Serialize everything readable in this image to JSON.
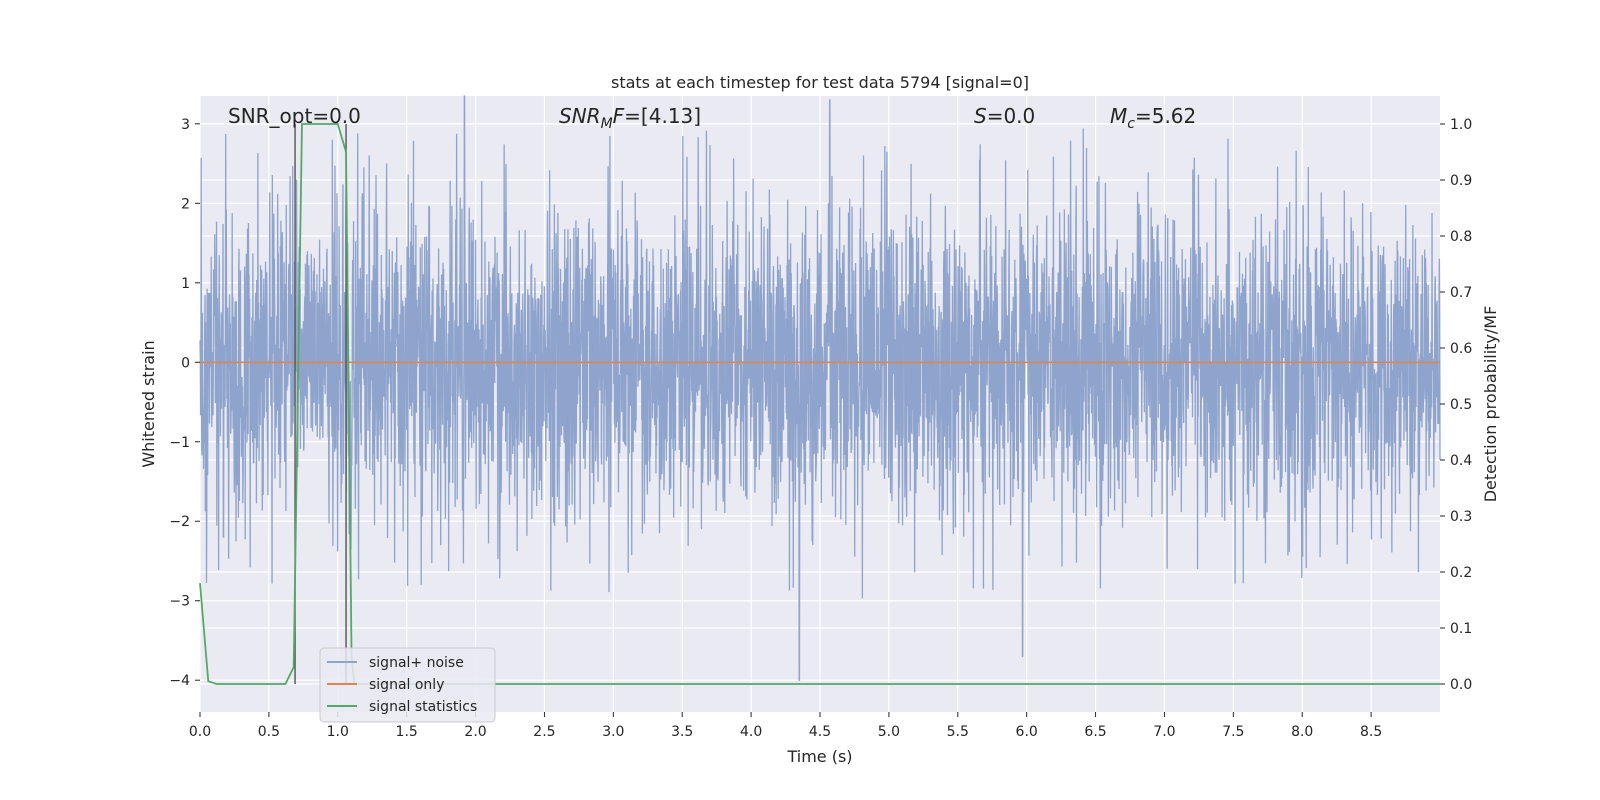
{
  "chart_data": {
    "type": "line",
    "title": "stats at each timestep for test data 5794 [signal=0]",
    "xlabel": "Time (s)",
    "ylabel": "Whitened strain",
    "y2label": "Detection probability/MF",
    "xlim": [
      0.0,
      9.0
    ],
    "ylim": [
      -4.4,
      3.35
    ],
    "y2lim": [
      -0.05,
      1.05
    ],
    "xticks": [
      "0.0",
      "0.5",
      "1.0",
      "1.5",
      "2.0",
      "2.5",
      "3.0",
      "3.5",
      "4.0",
      "4.5",
      "5.0",
      "5.5",
      "6.0",
      "6.5",
      "7.0",
      "7.5",
      "8.0",
      "8.5"
    ],
    "yticks": [
      "3",
      "2",
      "1",
      "0",
      "−1",
      "−2",
      "−3",
      "−4"
    ],
    "y2ticks": [
      "1.0",
      "0.9",
      "0.8",
      "0.7",
      "0.6",
      "0.5",
      "0.4",
      "0.3",
      "0.2",
      "0.1",
      "0.0"
    ],
    "grid": true,
    "legend_position": "lower-left",
    "annotations": {
      "snr_opt": "SNR_opt=0.0",
      "snr_mf_base": "SNR",
      "snr_mf_sub": "M",
      "snr_mf_rest": "F=[4.13]",
      "s_var": "S",
      "s_value": "=0.0",
      "mc_var": "M",
      "mc_sub": "c",
      "mc_value": "=5.62"
    },
    "series": [
      {
        "name": "signal+ noise",
        "color": "#8fa4cc",
        "axis": "left",
        "style": "dense noise",
        "typical_range": [
          -1.8,
          1.8
        ],
        "extremes": [
          [
            0.17,
            -2.2
          ],
          [
            1.92,
            3.35
          ],
          [
            4.35,
            -4.0
          ],
          [
            4.57,
            3.3
          ],
          [
            5.97,
            -3.7
          ]
        ]
      },
      {
        "name": "signal only",
        "color": "#dd8452",
        "axis": "left",
        "x": [
          0.0,
          9.0
        ],
        "y": [
          0.0,
          0.0
        ]
      },
      {
        "name": "signal statistics",
        "color": "#55a868",
        "axis": "right",
        "x": [
          0.0,
          0.06,
          0.12,
          0.62,
          0.68,
          0.74,
          1.0,
          1.06,
          1.1,
          1.12,
          9.0
        ],
        "y": [
          0.18,
          0.005,
          0.0,
          0.0,
          0.03,
          1.0,
          1.0,
          0.95,
          0.05,
          0.0,
          0.0
        ]
      }
    ],
    "vlines": [
      0.69,
      1.06
    ]
  }
}
